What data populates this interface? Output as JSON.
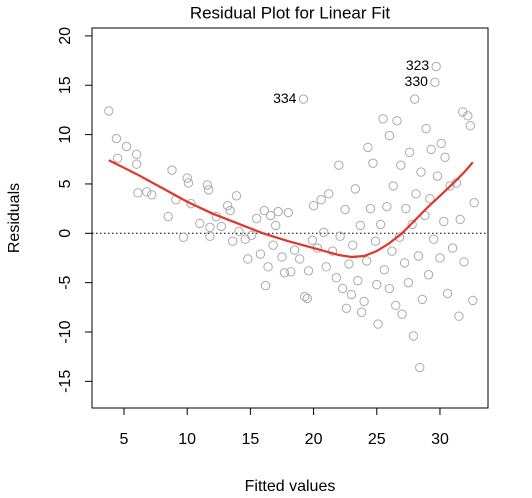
{
  "chart_data": {
    "type": "scatter",
    "title": "Residual Plot for Linear Fit",
    "xlabel": "Fitted values",
    "ylabel": "Residuals",
    "xlim": [
      2.47,
      33.8
    ],
    "ylim": [
      -17.7,
      20.8
    ],
    "xticks": [
      5,
      10,
      15,
      20,
      25,
      30
    ],
    "yticks": [
      -15,
      -10,
      -5,
      0,
      5,
      10,
      15,
      20
    ],
    "reference_line": 0,
    "color": "#aaaaaa",
    "x": [
      3.8,
      4.4,
      4.5,
      5.2,
      6,
      6,
      6.1,
      6.8,
      7.2,
      8.5,
      8.8,
      9.1,
      9.7,
      10,
      10.1,
      10.3,
      11,
      11.6,
      11.7,
      11.8,
      11.8,
      12.3,
      12.7,
      13.2,
      13.4,
      13.6,
      13.9,
      14.1,
      14.6,
      14.8,
      15.1,
      15.5,
      15.8,
      16.1,
      16.2,
      16.4,
      16.6,
      16.8,
      17,
      17.2,
      17.5,
      17.7,
      18,
      18.2,
      18.5,
      18.9,
      19.2,
      19.3,
      19.5,
      19.6,
      19.9,
      20,
      20.3,
      20.6,
      20.8,
      21,
      21.2,
      21.5,
      21.8,
      22,
      22.1,
      22.3,
      22.5,
      22.6,
      22.8,
      23,
      23.1,
      23.3,
      23.5,
      23.7,
      23.8,
      24,
      24.2,
      24.3,
      24.5,
      24.7,
      24.9,
      25,
      25.1,
      25.3,
      25.5,
      25.6,
      25.8,
      26,
      26,
      26.2,
      26.3,
      26.5,
      26.6,
      26.8,
      26.9,
      27,
      27.2,
      27.3,
      27.5,
      27.6,
      27.8,
      27.9,
      28,
      28.1,
      28.3,
      28.4,
      28.5,
      28.6,
      28.8,
      28.9,
      29.1,
      29.2,
      29.3,
      29.5,
      29.6,
      29.7,
      29.8,
      30,
      30.1,
      30.3,
      30.4,
      30.6,
      30.8,
      31,
      31.3,
      31.5,
      31.6,
      31.8,
      31.9,
      32.2,
      32.4,
      32.6,
      32.7
    ],
    "y": [
      12.4,
      9.6,
      7.6,
      8.8,
      8,
      7,
      4.1,
      4.2,
      3.9,
      1.7,
      6.4,
      3.4,
      -0.4,
      5.6,
      5.1,
      3,
      1,
      4.9,
      4.4,
      0.6,
      -0.3,
      1.7,
      0.7,
      2.8,
      2.3,
      -0.8,
      3.8,
      0.2,
      -0.6,
      -2.6,
      -0.2,
      1.5,
      -2.1,
      2.3,
      -5.3,
      -3.4,
      1.8,
      -1.2,
      0.8,
      2.2,
      -2.4,
      -4,
      2.1,
      -3.9,
      -1.7,
      -2.6,
      13.6,
      -6.4,
      -6.6,
      -3.8,
      -0.7,
      2.8,
      -1.5,
      3.4,
      0.1,
      -3.4,
      4,
      -1.8,
      -4.5,
      6.9,
      -0.3,
      -5.6,
      2.4,
      -7.6,
      -3.1,
      -6.2,
      -1.2,
      4.5,
      -4.8,
      0.8,
      -8,
      -6.9,
      -2.8,
      8.7,
      2.5,
      7.1,
      -0.8,
      -5.2,
      -9.2,
      0.9,
      11.6,
      -3.7,
      2.7,
      -5.6,
      9.9,
      -1.8,
      4.8,
      -7.3,
      11.4,
      -0.4,
      6.9,
      -8.2,
      -3,
      2.5,
      -5,
      8.2,
      0.9,
      -10.4,
      13.6,
      4,
      -2.3,
      -13.6,
      6.2,
      -6.7,
      1.8,
      10.6,
      -4.2,
      3.5,
      8.5,
      -0.6,
      15.3,
      16.9,
      5.8,
      -2.5,
      9.1,
      1.2,
      7.7,
      -6.1,
      4.8,
      -1.5,
      5.1,
      -8.4,
      1.4,
      12.3,
      -2.9,
      11.9,
      10.9,
      -6.8,
      3.1
    ],
    "smooth": {
      "color": "#e0362a",
      "x": [
        3.8,
        6,
        8,
        10,
        12,
        14,
        16,
        18,
        20,
        22,
        23,
        24,
        25,
        26,
        27,
        28,
        29,
        30,
        31,
        32,
        32.6
      ],
      "y": [
        7.4,
        6,
        4.6,
        3.2,
        2,
        1,
        0,
        -0.8,
        -1.5,
        -2.2,
        -2.4,
        -2.3,
        -1.8,
        -1,
        0,
        1.3,
        2.6,
        3.8,
        5,
        6.3,
        7.2
      ]
    },
    "annotations": [
      {
        "text": "323",
        "x": 29.7,
        "y": 16.9
      },
      {
        "text": "330",
        "x": 29.6,
        "y": 15.3
      },
      {
        "text": "334",
        "x": 19.2,
        "y": 13.6
      }
    ]
  }
}
